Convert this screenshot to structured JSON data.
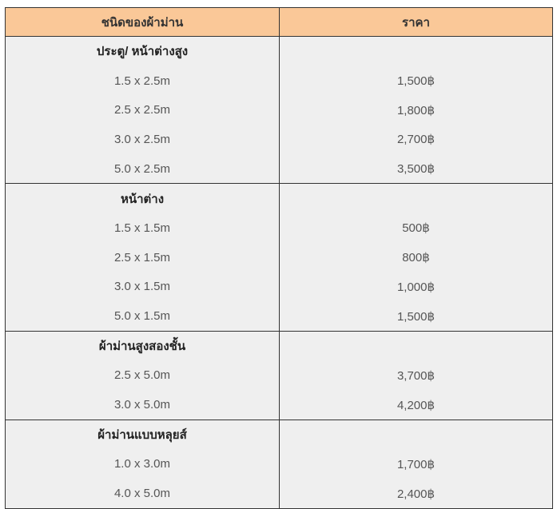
{
  "header": {
    "type": "ชนิดของผ้าม่าน",
    "price": "ราคา"
  },
  "groups": [
    {
      "title": "ประตู/ หน้าต่างสูง",
      "rows": [
        {
          "size": "1.5 x 2.5m",
          "price": "1,500฿"
        },
        {
          "size": "2.5 x 2.5m",
          "price": "1,800฿"
        },
        {
          "size": "3.0 x 2.5m",
          "price": "2,700฿"
        },
        {
          "size": "5.0 x 2.5m",
          "price": "3,500฿"
        }
      ]
    },
    {
      "title": "หน้าต่าง",
      "rows": [
        {
          "size": "1.5 x 1.5m",
          "price": "500฿"
        },
        {
          "size": "2.5 x 1.5m",
          "price": "800฿"
        },
        {
          "size": "3.0 x 1.5m",
          "price": "1,000฿"
        },
        {
          "size": "5.0 x 1.5m",
          "price": "1,500฿"
        }
      ]
    },
    {
      "title": "ผ้าม่านสูงสองชั้น",
      "rows": [
        {
          "size": "2.5 x 5.0m",
          "price": "3,700฿"
        },
        {
          "size": "3.0 x 5.0m",
          "price": "4,200฿"
        }
      ]
    },
    {
      "title": "ผ้าม่านแบบหลุยส์",
      "rows": [
        {
          "size": "1.0 x 3.0m",
          "price": "1,700฿"
        },
        {
          "size": "4.0 x 5.0m",
          "price": "2,400฿"
        }
      ]
    }
  ],
  "colors": {
    "header_bg": "#fac898",
    "cell_bg": "#efefef",
    "border": "#333333"
  }
}
